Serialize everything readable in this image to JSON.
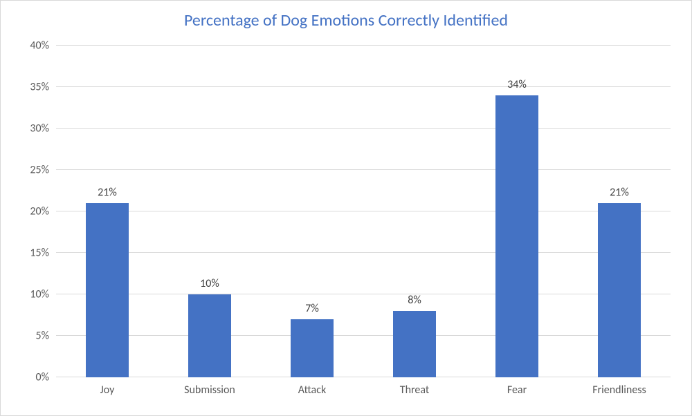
{
  "chart": {
    "type": "bar",
    "title": "Percentage of Dog Emotions Correctly Identified",
    "title_color": "#4472c4",
    "title_fontsize": 24,
    "categories": [
      "Joy",
      "Submission",
      "Attack",
      "Threat",
      "Fear",
      "Friendliness"
    ],
    "values": [
      21,
      10,
      7,
      8,
      34,
      21
    ],
    "value_labels": [
      "21%",
      "10%",
      "7%",
      "8%",
      "34%",
      "21%"
    ],
    "bar_color": "#4472c4",
    "bar_width": 0.42,
    "ylim": [
      0,
      40
    ],
    "ytick_step": 5,
    "ytick_labels": [
      "0%",
      "5%",
      "10%",
      "15%",
      "20%",
      "25%",
      "30%",
      "35%",
      "40%"
    ],
    "grid_color": "#d9d9d9",
    "axis_text_color": "#595959",
    "data_label_color": "#404040",
    "background_color": "#ffffff",
    "border_color": "#d9d9d9",
    "label_fontsize": 16
  }
}
